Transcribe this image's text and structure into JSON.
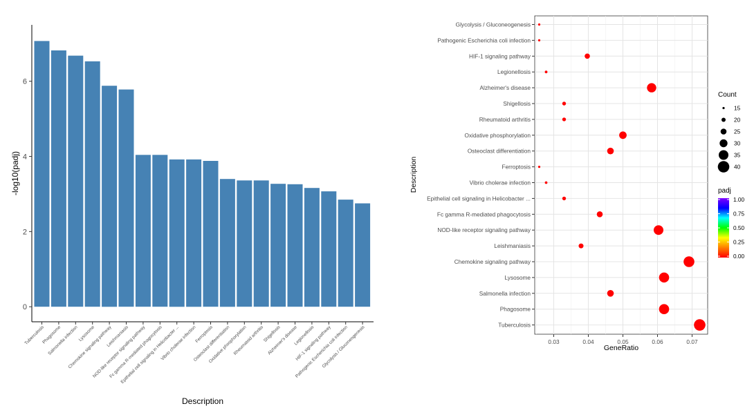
{
  "chart_data": [
    {
      "type": "bar",
      "xlabel": "Description",
      "ylabel": "-log10(padj)",
      "ylim": [
        -0.4,
        7.5
      ],
      "yticks": [
        0,
        2,
        4,
        6
      ],
      "bar_color": "#4682B4",
      "categories": [
        "Tuberculosis",
        "Phagosome",
        "Salmonella infection",
        "Lysosome",
        "Chemokine signaling pathway",
        "Leishmaniasis",
        "NOD-like receptor signaling pathway",
        "Fc gamma R-mediated phagocytosis",
        "Epithelial cell signaling in Helicobacter ...",
        "Vibrio cholerae infection",
        "Ferroptosis",
        "Osteoclast differentiation",
        "Oxidative phosphorylation",
        "Rheumatoid arthritis",
        "Shigellosis",
        "Alzheimer's disease",
        "Legionellosis",
        "HIF-1 signaling pathway",
        "Pathogenic Escherichia coli infection",
        "Glycolysis / Gluconeogenesis"
      ],
      "values": [
        7.07,
        6.82,
        6.68,
        6.53,
        5.88,
        5.78,
        4.04,
        4.04,
        3.92,
        3.92,
        3.88,
        3.4,
        3.36,
        3.36,
        3.27,
        3.26,
        3.16,
        3.07,
        2.85,
        2.75
      ]
    },
    {
      "type": "scatter",
      "xlabel": "GeneRatio",
      "ylabel": "Description",
      "xlim": [
        0.0245,
        0.0745
      ],
      "xticks": [
        0.03,
        0.04,
        0.05,
        0.06,
        0.07
      ],
      "xtick_labels": [
        "0.03",
        "0.04",
        "0.05",
        "0.06",
        "0.07"
      ],
      "categories": [
        "Tuberculosis",
        "Phagosome",
        "Salmonella infection",
        "Lysosome",
        "Chemokine signaling pathway",
        "Leishmaniasis",
        "NOD-like receptor signaling pathway",
        "Fc gamma R-mediated phagocytosis",
        "Epithelial cell signaling in Helicobacter ...",
        "Vibrio cholerae infection",
        "Ferroptosis",
        "Osteoclast differentiation",
        "Oxidative phosphorylation",
        "Rheumatoid arthritis",
        "Shigellosis",
        "Alzheimer's disease",
        "Legionellosis",
        "HIF-1 signaling pathway",
        "Pathogenic Escherichia coli infection",
        "Glycolysis / Gluconeogenesis"
      ],
      "x": [
        0.0722,
        0.0619,
        0.0464,
        0.0619,
        0.0691,
        0.0379,
        0.0603,
        0.0433,
        0.033,
        0.0278,
        0.0258,
        0.0464,
        0.05,
        0.033,
        0.033,
        0.0583,
        0.0278,
        0.0397,
        0.0258,
        0.0258
      ],
      "count": [
        40,
        36,
        27,
        36,
        38,
        22,
        35,
        25,
        19,
        16,
        15,
        27,
        29,
        19,
        19,
        34,
        16,
        23,
        15,
        15
      ],
      "padj": [
        0.0,
        0.0,
        0.0,
        0.0,
        0.0,
        0.0,
        0.0,
        0.0,
        0.0,
        0.0,
        0.0,
        0.0,
        0.0,
        0.0,
        0.0,
        0.0,
        0.0,
        0.0,
        0.0,
        0.0
      ],
      "point_color": "#FF0000",
      "legend_size": {
        "title": "Count",
        "values": [
          "15",
          "20",
          "25",
          "30",
          "35",
          "40"
        ]
      },
      "legend_color": {
        "title": "padj",
        "values": [
          "1.00",
          "0.75",
          "0.50",
          "0.25",
          "0.00"
        ],
        "colors": [
          "#7F00FF",
          "#0000FF",
          "#00FFFF",
          "#00FF00",
          "#FFFF00",
          "#FF7F00",
          "#FF0000"
        ]
      }
    }
  ]
}
